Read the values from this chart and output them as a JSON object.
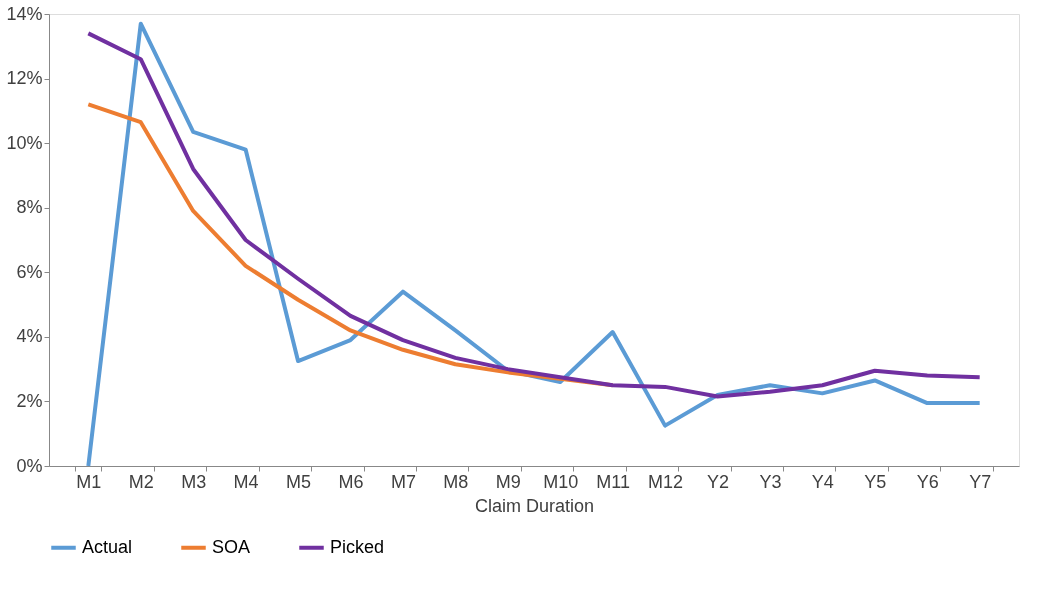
{
  "chart_data": {
    "type": "line",
    "xlabel": "Claim Duration",
    "categories": [
      "M1",
      "M2",
      "M3",
      "M4",
      "M5",
      "M6",
      "M7",
      "M8",
      "M9",
      "M10",
      "M11",
      "M12",
      "Y2",
      "Y3",
      "Y4",
      "Y5",
      "Y6",
      "Y7"
    ],
    "series": [
      {
        "name": "Actual",
        "color": "#5b9bd5",
        "values": [
          0,
          13.7,
          10.35,
          9.8,
          3.25,
          3.9,
          5.4,
          4.2,
          2.95,
          2.6,
          4.15,
          1.25,
          2.2,
          2.5,
          2.25,
          2.65,
          1.95,
          1.95
        ]
      },
      {
        "name": "SOA",
        "color": "#ed7d31",
        "values": [
          11.2,
          10.65,
          7.9,
          6.2,
          5.15,
          4.2,
          3.6,
          3.15,
          2.9,
          2.7,
          2.5,
          null,
          null,
          null,
          null,
          null,
          null,
          null
        ]
      },
      {
        "name": "Picked",
        "color": "#7030a0",
        "values": [
          13.4,
          12.6,
          9.2,
          7.0,
          5.8,
          4.65,
          3.9,
          3.35,
          3.0,
          2.75,
          2.5,
          2.45,
          2.15,
          2.3,
          2.5,
          2.95,
          2.8,
          2.75
        ]
      }
    ],
    "ylim": [
      0,
      14
    ],
    "yticks": [
      {
        "value": 0,
        "label": "0%"
      },
      {
        "value": 2,
        "label": "2%"
      },
      {
        "value": 4,
        "label": "4%"
      },
      {
        "value": 6,
        "label": "6%"
      },
      {
        "value": 8,
        "label": "8%"
      },
      {
        "value": 10,
        "label": "10%"
      },
      {
        "value": 12,
        "label": "12%"
      },
      {
        "value": 14,
        "label": "14%"
      }
    ],
    "grid": false,
    "legend": "bottom",
    "marker": "none",
    "line_style": "solid"
  }
}
